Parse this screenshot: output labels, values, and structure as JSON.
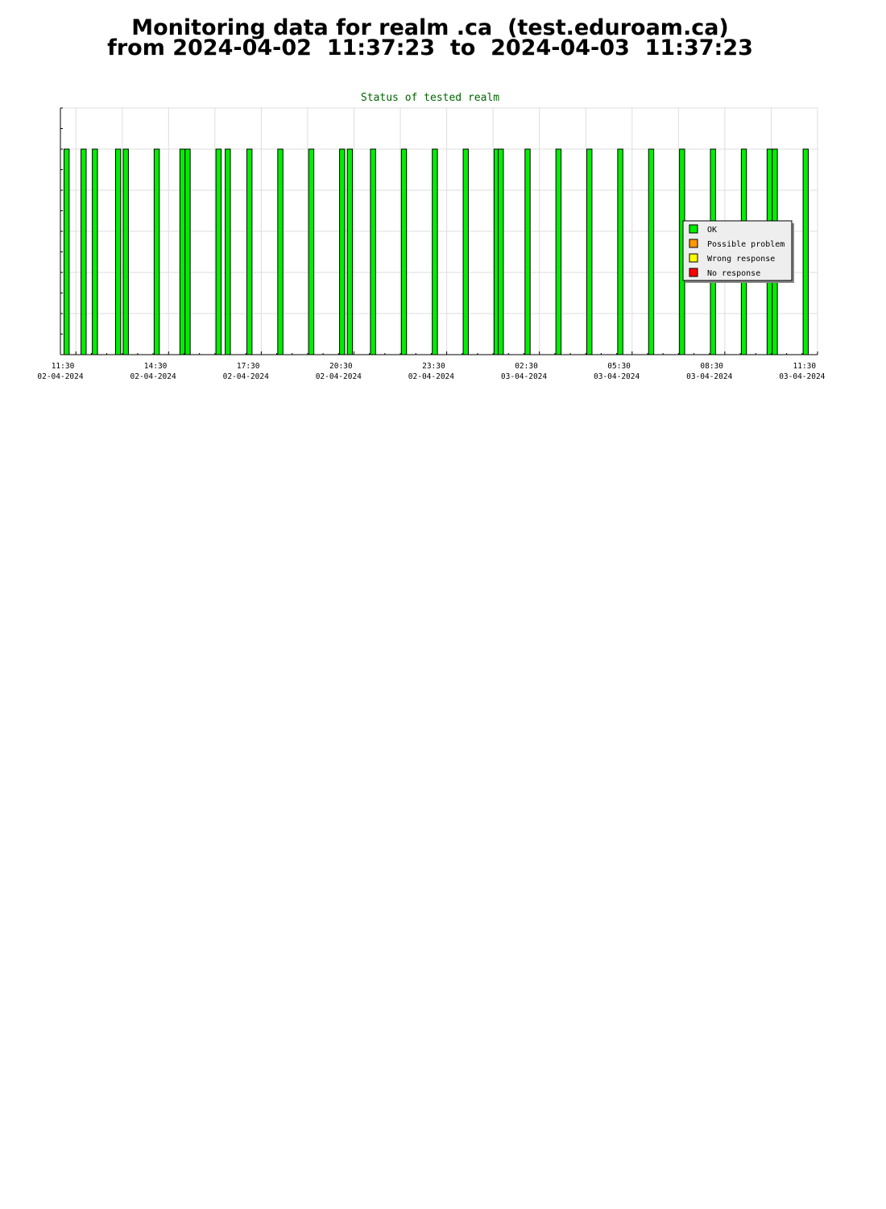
{
  "page_title": {
    "line1": "Monitoring data for realm .ca  (test.eduroam.ca)",
    "line2": "from 2024-04-02  11:37:23  to  2024-04-03  11:37:23"
  },
  "chart_data": {
    "type": "bar",
    "title": "Status of tested realm",
    "xlabel": "",
    "ylabel": "",
    "x_range": [
      "2024-04-02 11:30",
      "2024-04-03 12:00"
    ],
    "ylim": [
      0,
      6
    ],
    "grid": true,
    "x_ticks": [
      {
        "time": "11:30",
        "date": "02-04-2024"
      },
      {
        "time": "14:30",
        "date": "02-04-2024"
      },
      {
        "time": "17:30",
        "date": "02-04-2024"
      },
      {
        "time": "20:30",
        "date": "02-04-2024"
      },
      {
        "time": "23:30",
        "date": "02-04-2024"
      },
      {
        "time": "02:30",
        "date": "03-04-2024"
      },
      {
        "time": "05:30",
        "date": "03-04-2024"
      },
      {
        "time": "08:30",
        "date": "03-04-2024"
      },
      {
        "time": "11:30",
        "date": "03-04-2024"
      }
    ],
    "legend": {
      "placement": "right",
      "items": [
        {
          "label": "OK",
          "color": "#00ee00"
        },
        {
          "label": "Possible problem",
          "color": "#ff9900"
        },
        {
          "label": "Wrong response",
          "color": "#ffff00"
        },
        {
          "label": "No response",
          "color": "#ff0000"
        }
      ]
    },
    "series": [
      {
        "name": "OK",
        "color": "#00ee00",
        "bar_width_minutes": 10,
        "points": [
          {
            "x": "2024-04-02 11:37",
            "y": 5
          },
          {
            "x": "2024-04-02 12:10",
            "y": 5
          },
          {
            "x": "2024-04-02 12:32",
            "y": 5
          },
          {
            "x": "2024-04-02 13:17",
            "y": 5
          },
          {
            "x": "2024-04-02 13:32",
            "y": 5
          },
          {
            "x": "2024-04-02 14:32",
            "y": 5
          },
          {
            "x": "2024-04-02 15:22",
            "y": 5
          },
          {
            "x": "2024-04-02 15:32",
            "y": 5
          },
          {
            "x": "2024-04-02 16:32",
            "y": 5
          },
          {
            "x": "2024-04-02 16:50",
            "y": 5
          },
          {
            "x": "2024-04-02 17:32",
            "y": 5
          },
          {
            "x": "2024-04-02 18:32",
            "y": 5
          },
          {
            "x": "2024-04-02 19:32",
            "y": 5
          },
          {
            "x": "2024-04-02 20:32",
            "y": 5
          },
          {
            "x": "2024-04-02 20:47",
            "y": 5
          },
          {
            "x": "2024-04-02 21:32",
            "y": 5
          },
          {
            "x": "2024-04-02 22:32",
            "y": 5
          },
          {
            "x": "2024-04-02 23:32",
            "y": 5
          },
          {
            "x": "2024-04-03 00:32",
            "y": 5
          },
          {
            "x": "2024-04-03 01:32",
            "y": 5
          },
          {
            "x": "2024-04-03 01:40",
            "y": 5
          },
          {
            "x": "2024-04-03 02:32",
            "y": 5
          },
          {
            "x": "2024-04-03 03:32",
            "y": 5
          },
          {
            "x": "2024-04-03 04:32",
            "y": 5
          },
          {
            "x": "2024-04-03 05:32",
            "y": 5
          },
          {
            "x": "2024-04-03 06:32",
            "y": 5
          },
          {
            "x": "2024-04-03 07:32",
            "y": 5
          },
          {
            "x": "2024-04-03 08:32",
            "y": 5
          },
          {
            "x": "2024-04-03 09:32",
            "y": 5
          },
          {
            "x": "2024-04-03 10:22",
            "y": 5
          },
          {
            "x": "2024-04-03 10:32",
            "y": 5
          },
          {
            "x": "2024-04-03 11:32",
            "y": 5
          }
        ]
      }
    ]
  }
}
